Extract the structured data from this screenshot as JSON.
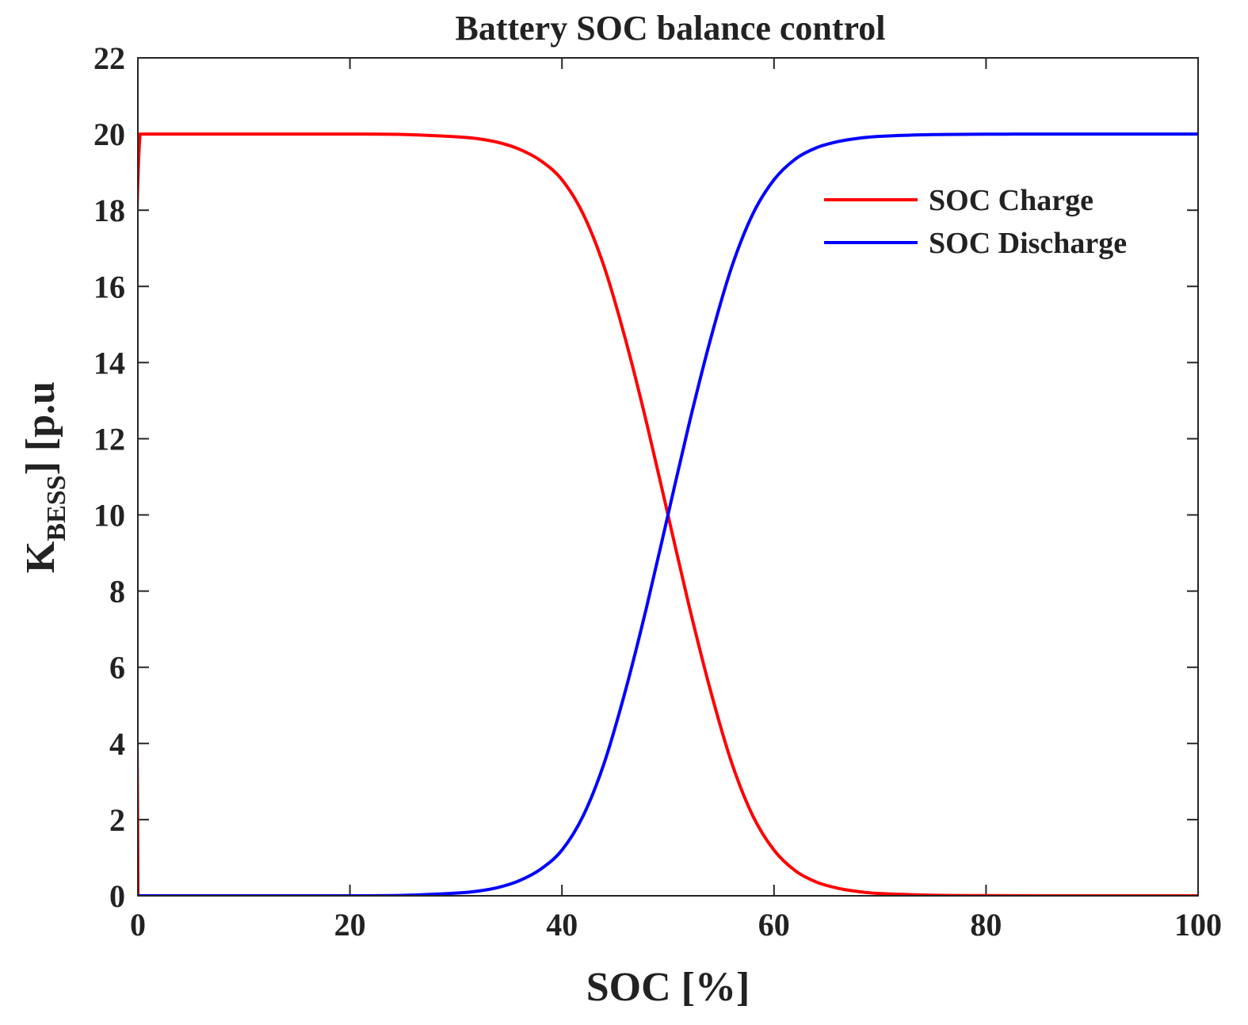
{
  "chart_data": {
    "type": "line",
    "title": "Battery SOC balance control",
    "xlabel": "SOC [%]",
    "ylabel": {
      "main": "K",
      "subscript": "BESS",
      "suffix": "] [p.u"
    },
    "xlim": [
      0,
      100
    ],
    "ylim": [
      0,
      22
    ],
    "xticks": [
      0,
      20,
      40,
      60,
      80,
      100
    ],
    "yticks": [
      0,
      2,
      4,
      6,
      8,
      10,
      12,
      14,
      16,
      18,
      20,
      22
    ],
    "grid": false,
    "legend_position": "top-right",
    "series": [
      {
        "name": "SOC Charge",
        "color": "#ff0000",
        "x": [
          0,
          0.2,
          5,
          10,
          15,
          20,
          25,
          30,
          32,
          34,
          36,
          38,
          40,
          42,
          44,
          46,
          48,
          50,
          52,
          54,
          56,
          58,
          60,
          62,
          64,
          66,
          68,
          70,
          75,
          80,
          85,
          90,
          95,
          100
        ],
        "values": [
          0,
          20,
          20,
          20,
          20,
          20,
          19.99,
          19.93,
          19.88,
          19.78,
          19.6,
          19.3,
          18.8,
          17.9,
          16.5,
          14.6,
          12.4,
          10.0,
          7.6,
          5.4,
          3.5,
          2.1,
          1.2,
          0.66,
          0.36,
          0.2,
          0.11,
          0.06,
          0.015,
          0.004,
          0.001,
          0,
          0,
          0
        ]
      },
      {
        "name": "SOC Discharge",
        "color": "#0000ff",
        "x": [
          0,
          5,
          10,
          15,
          20,
          25,
          30,
          32,
          34,
          36,
          38,
          40,
          42,
          44,
          46,
          48,
          50,
          52,
          54,
          56,
          58,
          60,
          62,
          64,
          66,
          68,
          70,
          75,
          80,
          85,
          90,
          95,
          100
        ],
        "values": [
          0,
          0,
          0,
          0,
          0,
          0.01,
          0.07,
          0.12,
          0.22,
          0.4,
          0.7,
          1.2,
          2.1,
          3.5,
          5.4,
          7.6,
          10.0,
          12.4,
          14.6,
          16.5,
          17.9,
          18.8,
          19.34,
          19.64,
          19.8,
          19.89,
          19.94,
          19.985,
          19.996,
          19.999,
          20,
          20,
          20
        ]
      }
    ]
  }
}
